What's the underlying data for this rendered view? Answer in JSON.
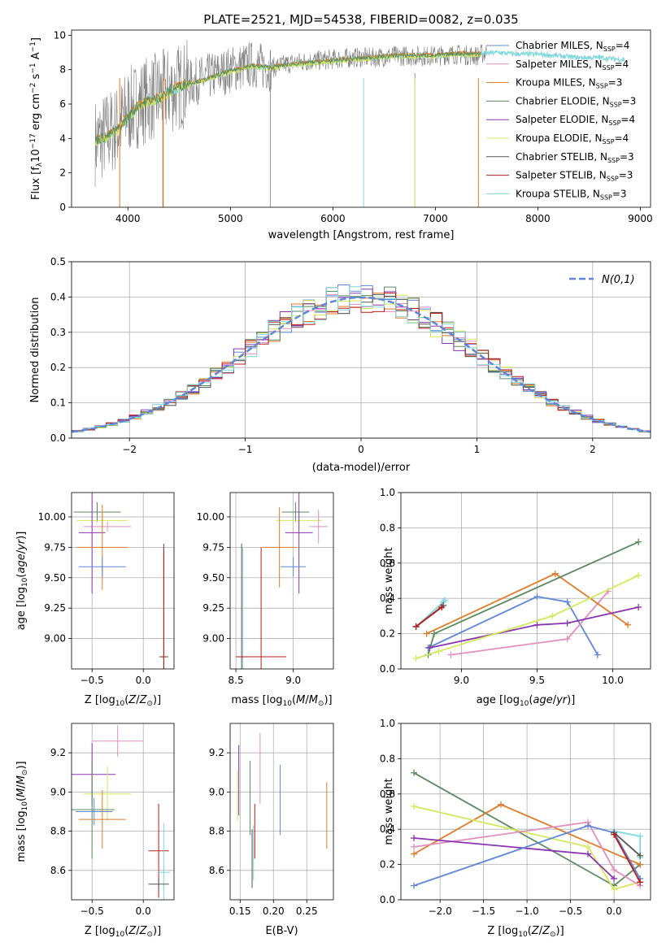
{
  "title": "PLATE=2521, MJD=54538, FIBERID=0082, z=0.035",
  "models": [
    {
      "label": "Chabrier MILES, N_SSP=4",
      "color": "#5f87d9"
    },
    {
      "label": "Salpeter MILES, N_SSP=4",
      "color": "#e38fbd"
    },
    {
      "label": "Kroupa MILES, N_SSP=3",
      "color": "#e07b28"
    },
    {
      "label": "Chabrier ELODIE, N_SSP=3",
      "color": "#5b8a5e"
    },
    {
      "label": "Salpeter ELODIE, N_SSP=4",
      "color": "#8a35b0"
    },
    {
      "label": "Kroupa ELODIE, N_SSP=4",
      "color": "#d4e85a"
    },
    {
      "label": "Chabrier STELIB, N_SSP=3",
      "color": "#555555"
    },
    {
      "label": "Salpeter STELIB, N_SSP=3",
      "color": "#b81c1c"
    },
    {
      "label": "Kroupa STELIB, N_SSP=3",
      "color": "#7fd8db"
    }
  ],
  "chart_data": [
    {
      "type": "line",
      "id": "spectrum",
      "xlabel": "wavelength [Angstrom, rest frame]",
      "ylabel": "Flux [f_λ 10^-17 erg cm^-2 s^-1 A^-1]",
      "xlim": [
        3450,
        9100
      ],
      "ylim": [
        0,
        10.3
      ],
      "xticks": [
        4000,
        5000,
        6000,
        7000,
        8000,
        9000
      ],
      "yticks": [
        0,
        2,
        4,
        6,
        8,
        10
      ],
      "observed": {
        "color": "#808080",
        "x": [
          3700,
          3800,
          3900,
          4000,
          4100,
          4200,
          4300,
          4400,
          4500,
          4600,
          4700,
          4800,
          4900,
          5000,
          5200,
          5400,
          5600,
          5800,
          6000,
          6200,
          6400,
          6600,
          6800,
          7000,
          7200,
          7400,
          7500
        ],
        "y": [
          3.8,
          4.3,
          4.6,
          5.6,
          6.0,
          6.3,
          6.5,
          6.8,
          7.0,
          7.2,
          7.4,
          7.6,
          7.8,
          8.0,
          8.3,
          8.1,
          8.4,
          8.5,
          8.6,
          8.7,
          8.7,
          8.8,
          8.8,
          8.8,
          8.9,
          8.8,
          9.0
        ]
      },
      "model": {
        "color": "#7fd8db",
        "x": [
          3700,
          3800,
          3900,
          4000,
          4100,
          4200,
          4300,
          4400,
          4500,
          4600,
          4700,
          4800,
          4900,
          5000,
          5200,
          5400,
          5600,
          5800,
          6000,
          6200,
          6400,
          6600,
          6800,
          7000,
          7200,
          7400,
          7600,
          7800,
          8000,
          8200,
          8400,
          8600,
          8800
        ],
        "y": [
          3.9,
          4.1,
          4.5,
          5.2,
          5.9,
          6.2,
          6.3,
          6.7,
          7.0,
          7.2,
          7.3,
          7.5,
          7.7,
          7.9,
          8.2,
          8.1,
          8.3,
          8.4,
          8.5,
          8.6,
          8.7,
          8.8,
          8.8,
          8.8,
          8.9,
          8.9,
          9.0,
          8.9,
          8.9,
          8.8,
          8.7,
          8.7,
          8.6
        ]
      }
    },
    {
      "type": "area",
      "id": "residuals",
      "xlabel": "(data-model)/error",
      "ylabel": "Normed distribution",
      "xlim": [
        -2.5,
        2.5
      ],
      "ylim": [
        0,
        0.5
      ],
      "xticks": [
        -2,
        -1,
        0,
        1,
        2
      ],
      "yticks": [
        0.0,
        0.1,
        0.2,
        0.3,
        0.4,
        0.5
      ],
      "legend": "N(0,1)",
      "legend_position": "top-right",
      "bin_width": 0.1,
      "reference": {
        "name": "N(0,1)",
        "color": "#5f87d9",
        "mu": 0,
        "sigma": 1
      }
    },
    {
      "type": "scatter",
      "id": "age-vs-Z",
      "xlabel": "Z [log10(Z/Z⊙)]",
      "ylabel": "age  [log10(age/yr)]",
      "xlim": [
        -0.7,
        0.3
      ],
      "ylim": [
        8.75,
        10.2
      ],
      "xticks": [
        -0.5,
        0.0
      ],
      "yticks": [
        9.0,
        9.25,
        9.5,
        9.75,
        10.0
      ],
      "points": [
        {
          "m": 3,
          "x": -0.45,
          "y": 10.04,
          "ex": 0.23,
          "ey": 0.08
        },
        {
          "m": 5,
          "x": -0.4,
          "y": 9.97,
          "ex": 0.25,
          "ey": 0.07
        },
        {
          "m": 1,
          "x": -0.35,
          "y": 9.92,
          "ex": 0.23,
          "ey": 0.04
        },
        {
          "m": 4,
          "x": -0.5,
          "y": 9.87,
          "ex": 0.13,
          "ey": 0.5
        },
        {
          "m": 2,
          "x": -0.4,
          "y": 9.75,
          "ex": 0.25,
          "ey": 0.35
        },
        {
          "m": 0,
          "x": -0.4,
          "y": 9.59,
          "ex": 0.23,
          "ey": 0.08
        },
        {
          "m": 8,
          "x": 0.2,
          "y": 8.85,
          "ex": 0.05,
          "ey": 0.9
        },
        {
          "m": 6,
          "x": 0.2,
          "y": 8.85,
          "ex": 0.04,
          "ey": 0.93
        },
        {
          "m": 7,
          "x": 0.2,
          "y": 8.85,
          "ex": 0.03,
          "ey": 0.9
        }
      ]
    },
    {
      "type": "scatter",
      "id": "age-vs-mass",
      "xlabel": "mass [log10(M/M⊙)]",
      "ylabel": "",
      "xlim": [
        8.45,
        9.35
      ],
      "ylim": [
        8.75,
        10.2
      ],
      "xticks": [
        8.5,
        9.0
      ],
      "yticks": [
        9.0,
        9.25,
        9.5,
        9.75,
        10.0
      ],
      "points": [
        {
          "m": 3,
          "x": 9.02,
          "y": 10.04,
          "ex": 0.12,
          "ey": 0.08
        },
        {
          "m": 5,
          "x": 9.05,
          "y": 9.97,
          "ex": 0.2,
          "ey": 0.07
        },
        {
          "m": 1,
          "x": 9.22,
          "y": 9.92,
          "ex": 0.08,
          "ey": 0.14
        },
        {
          "m": 4,
          "x": 9.05,
          "y": 9.87,
          "ex": 0.12,
          "ey": 0.5
        },
        {
          "m": 2,
          "x": 8.88,
          "y": 9.75,
          "ex": 0.15,
          "ey": 0.33
        },
        {
          "m": 0,
          "x": 9.0,
          "y": 9.59,
          "ex": 0.11,
          "ey": 0.08
        },
        {
          "m": 8,
          "x": 8.56,
          "y": 8.85,
          "ex": 0.05,
          "ey": 0.9
        },
        {
          "m": 6,
          "x": 8.55,
          "y": 8.85,
          "ex": 0.03,
          "ey": 0.93
        },
        {
          "m": 7,
          "x": 8.72,
          "y": 8.85,
          "ex": 0.22,
          "ey": 0.9
        }
      ]
    },
    {
      "type": "line",
      "id": "weight-vs-age",
      "xlabel": "age  [log10(age/yr)]",
      "ylabel": "mass weight",
      "xlim": [
        8.6,
        10.25
      ],
      "ylim": [
        0.0,
        1.0
      ],
      "xticks": [
        9.0,
        9.5,
        10.0
      ],
      "yticks": [
        0.0,
        0.2,
        0.4,
        0.6,
        0.8,
        1.0
      ],
      "series": [
        {
          "m": 8,
          "x": [
            8.7,
            8.88,
            8.89
          ],
          "y": [
            0.24,
            0.38,
            0.39
          ]
        },
        {
          "m": 0,
          "x": [
            8.78,
            9.5,
            9.7,
            9.9
          ],
          "y": [
            0.12,
            0.41,
            0.38,
            0.08
          ]
        },
        {
          "m": 1,
          "x": [
            8.93,
            9.7,
            9.97
          ],
          "y": [
            0.08,
            0.17,
            0.44
          ]
        },
        {
          "m": 2,
          "x": [
            8.77,
            9.62,
            10.1
          ],
          "y": [
            0.2,
            0.54,
            0.25
          ]
        },
        {
          "m": 3,
          "x": [
            8.78,
            8.82,
            10.17
          ],
          "y": [
            0.08,
            0.2,
            0.72
          ]
        },
        {
          "m": 4,
          "x": [
            8.79,
            9.5,
            9.7,
            10.17
          ],
          "y": [
            0.12,
            0.25,
            0.26,
            0.35
          ]
        },
        {
          "m": 5,
          "x": [
            8.7,
            8.85,
            9.6,
            10.17
          ],
          "y": [
            0.06,
            0.1,
            0.3,
            0.53
          ]
        },
        {
          "m": 6,
          "x": [
            8.7,
            8.88
          ],
          "y": [
            0.24,
            0.36
          ]
        },
        {
          "m": 7,
          "x": [
            8.7,
            8.87
          ],
          "y": [
            0.24,
            0.35
          ]
        }
      ]
    },
    {
      "type": "scatter",
      "id": "mass-vs-Z",
      "xlabel": "Z [log10(Z/Z⊙)]",
      "ylabel": "mass [log10(M/M⊙)]",
      "xlim": [
        -0.7,
        0.3
      ],
      "ylim": [
        8.45,
        9.35
      ],
      "xticks": [
        -0.5,
        0.0
      ],
      "yticks": [
        8.6,
        8.8,
        9.0,
        9.2
      ],
      "points": [
        {
          "m": 1,
          "x": -0.25,
          "y": 9.26,
          "ex": 0.25,
          "ey": 0.08
        },
        {
          "m": 4,
          "x": -0.5,
          "y": 9.09,
          "ex": 0.23,
          "ey": 0.16
        },
        {
          "m": 5,
          "x": -0.35,
          "y": 8.99,
          "ex": 0.23,
          "ey": 0.14
        },
        {
          "m": 3,
          "x": -0.5,
          "y": 8.91,
          "ex": 0.22,
          "ey": 0.25
        },
        {
          "m": 0,
          "x": -0.48,
          "y": 8.9,
          "ex": 0.18,
          "ey": 0.07
        },
        {
          "m": 2,
          "x": -0.4,
          "y": 8.86,
          "ex": 0.23,
          "ey": 0.15
        },
        {
          "m": 7,
          "x": 0.15,
          "y": 8.7,
          "ex": 0.1,
          "ey": 0.24
        },
        {
          "m": 8,
          "x": 0.2,
          "y": 8.59,
          "ex": 0.06,
          "ey": 0.25
        },
        {
          "m": 6,
          "x": 0.15,
          "y": 8.53,
          "ex": 0.1,
          "ey": 0.03
        }
      ]
    },
    {
      "type": "scatter",
      "id": "mass-vs-EBV",
      "xlabel": "E(B-V)",
      "ylabel": "",
      "xlim": [
        0.135,
        0.29
      ],
      "ylim": [
        8.45,
        9.35
      ],
      "xticks": [
        0.15,
        0.2,
        0.25
      ],
      "yticks": [
        8.6,
        8.8,
        9.0,
        9.2
      ],
      "points": [
        {
          "m": 1,
          "x": 0.18,
          "y": 9.12,
          "ey": 0.18
        },
        {
          "m": 4,
          "x": 0.148,
          "y": 9.06,
          "ey": 0.18
        },
        {
          "m": 5,
          "x": 0.146,
          "y": 8.98,
          "ey": 0.13
        },
        {
          "m": 3,
          "x": 0.165,
          "y": 8.97,
          "ey": 0.19
        },
        {
          "m": 0,
          "x": 0.21,
          "y": 8.96,
          "ey": 0.18
        },
        {
          "m": 2,
          "x": 0.28,
          "y": 8.88,
          "ey": 0.17
        },
        {
          "m": 7,
          "x": 0.172,
          "y": 8.8,
          "ey": 0.14
        },
        {
          "m": 8,
          "x": 0.17,
          "y": 8.69,
          "ey": 0.14
        },
        {
          "m": 6,
          "x": 0.168,
          "y": 8.66,
          "ey": 0.15
        }
      ]
    },
    {
      "type": "line",
      "id": "weight-vs-Z",
      "xlabel": "Z [log10(Z/Z⊙)]",
      "ylabel": "mass weight",
      "xlim": [
        -2.45,
        0.42
      ],
      "ylim": [
        0.0,
        1.0
      ],
      "xticks": [
        -2.0,
        -1.5,
        -1.0,
        -0.5,
        0.0
      ],
      "yticks": [
        0.0,
        0.2,
        0.4,
        0.6,
        0.8,
        1.0
      ],
      "series": [
        {
          "m": 3,
          "x": [
            -2.3,
            0.0,
            0.3
          ],
          "y": [
            0.72,
            0.08,
            0.2
          ]
        },
        {
          "m": 2,
          "x": [
            -2.3,
            -1.3,
            0.3
          ],
          "y": [
            0.26,
            0.54,
            0.2
          ]
        },
        {
          "m": 5,
          "x": [
            -2.3,
            -0.3,
            0.0,
            0.3
          ],
          "y": [
            0.53,
            0.3,
            0.06,
            0.1
          ]
        },
        {
          "m": 1,
          "x": [
            -2.3,
            -0.3,
            0.0,
            0.3
          ],
          "y": [
            0.3,
            0.44,
            0.17,
            0.08
          ]
        },
        {
          "m": 4,
          "x": [
            -2.3,
            -0.3,
            0.0
          ],
          "y": [
            0.35,
            0.26,
            0.12
          ]
        },
        {
          "m": 0,
          "x": [
            -2.3,
            -0.3,
            0.0,
            0.3
          ],
          "y": [
            0.08,
            0.42,
            0.38,
            0.12
          ]
        },
        {
          "m": 8,
          "x": [
            0.0,
            0.3,
            0.3
          ],
          "y": [
            0.39,
            0.36,
            0.24
          ]
        },
        {
          "m": 6,
          "x": [
            0.0,
            0.3
          ],
          "y": [
            0.38,
            0.25
          ]
        },
        {
          "m": 7,
          "x": [
            0.0,
            0.3
          ],
          "y": [
            0.37,
            0.1
          ]
        }
      ]
    }
  ]
}
